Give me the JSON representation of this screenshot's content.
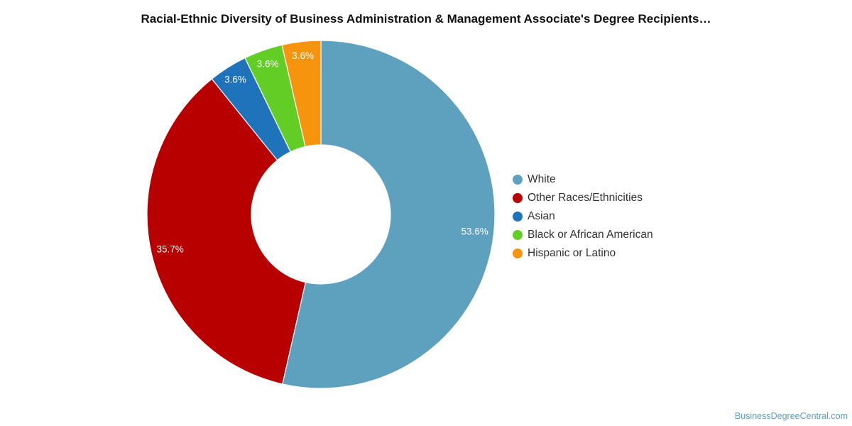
{
  "chart_data": {
    "type": "pie",
    "title": "Racial-Ethnic Diversity of Business Administration & Management Associate's Degree Recipients…",
    "donut": true,
    "legend_position": "right",
    "slices": [
      {
        "label": "White",
        "value": 53.6,
        "display": "53.6%",
        "color": "#5ea1bf"
      },
      {
        "label": "Other Races/Ethnicities",
        "value": 35.7,
        "display": "35.7%",
        "color": "#b80000"
      },
      {
        "label": "Asian",
        "value": 3.6,
        "display": "3.6%",
        "color": "#1f73bb"
      },
      {
        "label": "Black or African American",
        "value": 3.6,
        "display": "3.6%",
        "color": "#62cd25"
      },
      {
        "label": "Hispanic or Latino",
        "value": 3.6,
        "display": "3.6%",
        "color": "#f7940d"
      }
    ]
  },
  "watermark": "BusinessDegreeCentral.com"
}
